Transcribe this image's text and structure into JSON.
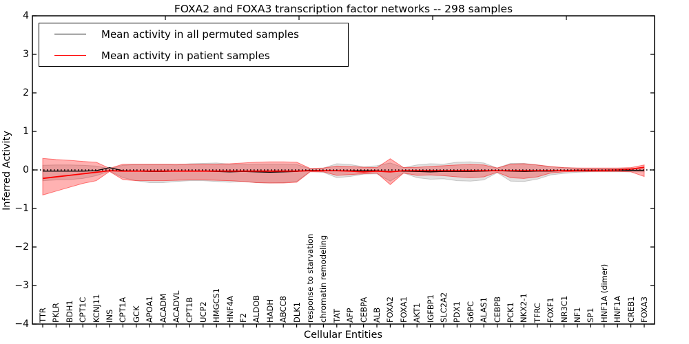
{
  "figure": {
    "title": "FOXA2 and FOXA3 transcription factor networks -- 298 samples",
    "xlabel": "Cellular Entities",
    "ylabel": "Inferred Activity"
  },
  "legend": {
    "items": [
      {
        "label": "Mean activity in all permuted samples",
        "color": "#000000"
      },
      {
        "label": "Mean activity in patient samples",
        "color": "#ff0000"
      }
    ],
    "position": "upper left"
  },
  "colors": {
    "permuted_line": "#000000",
    "patient_line": "#ff0000",
    "permuted_band": "#888888",
    "patient_band": "#ff0000",
    "zero_line": "#000000",
    "axis": "#000000"
  },
  "chart_data": {
    "type": "line",
    "title": "FOXA2 and FOXA3 transcription factor networks -- 298 samples",
    "xlabel": "Cellular Entities",
    "ylabel": "Inferred Activity",
    "ylim": [
      -4,
      4
    ],
    "y_ticks": [
      {
        "value": 4,
        "label": "4"
      },
      {
        "value": 3,
        "label": "3"
      },
      {
        "value": 2,
        "label": "2"
      },
      {
        "value": 1,
        "label": "1"
      },
      {
        "value": 0,
        "label": "0"
      },
      {
        "value": -1,
        "label": "−1"
      },
      {
        "value": -2,
        "label": "−2"
      },
      {
        "value": -3,
        "label": "−3"
      },
      {
        "value": -4,
        "label": "−4"
      }
    ],
    "grid": false,
    "legend_position": "upper left",
    "categories": [
      "TTR",
      "PKLR",
      "BDH1",
      "CPT1C",
      "KCNJ11",
      "INS",
      "CPT1A",
      "GCK",
      "APOA1",
      "ACADM",
      "ACADVL",
      "CPT1B",
      "UCP2",
      "HMGCS1",
      "HNF4A",
      "F2",
      "ALDOB",
      "HADH",
      "ABCC8",
      "DLK1",
      "response to starvation",
      "chromatin remodeling",
      "TAT",
      "AFP",
      "CEBPA",
      "ALB",
      "FOXA2",
      "FOXA1",
      "AKT1",
      "IGFBP1",
      "SLC2A2",
      "PDX1",
      "G6PC",
      "ALAS1",
      "CEBPB",
      "PCK1",
      "NKX2-1",
      "TFRC",
      "FOXF1",
      "NR3C1",
      "NF1",
      "SP1",
      "HNF1A (dimer)",
      "HNF1A",
      "CREB1",
      "FOXA3"
    ],
    "reference_lines": [
      {
        "y": 0,
        "style": "dotted",
        "color": "#000000"
      }
    ],
    "series": [
      {
        "name": "Mean activity in all permuted samples",
        "style": "line",
        "color": "#000000",
        "values": [
          -0.03,
          -0.03,
          -0.03,
          -0.03,
          -0.02,
          0.06,
          -0.02,
          -0.03,
          -0.04,
          -0.04,
          -0.03,
          -0.03,
          -0.03,
          -0.04,
          -0.05,
          -0.04,
          -0.05,
          -0.06,
          -0.05,
          -0.04,
          -0.01,
          -0.02,
          -0.02,
          -0.02,
          -0.02,
          -0.02,
          -0.04,
          -0.03,
          -0.04,
          -0.05,
          -0.04,
          -0.04,
          -0.04,
          -0.03,
          -0.02,
          -0.03,
          -0.04,
          -0.03,
          -0.03,
          -0.02,
          -0.02,
          -0.02,
          -0.01,
          -0.01,
          -0.01,
          -0.01
        ]
      },
      {
        "name": "Mean activity in patient samples",
        "style": "line",
        "color": "#ff0000",
        "values": [
          -0.22,
          -0.18,
          -0.14,
          -0.1,
          -0.06,
          -0.02,
          -0.03,
          -0.03,
          -0.03,
          -0.03,
          -0.03,
          -0.03,
          -0.03,
          -0.03,
          -0.03,
          -0.03,
          -0.03,
          -0.03,
          -0.03,
          -0.03,
          -0.02,
          -0.02,
          -0.02,
          -0.03,
          -0.05,
          -0.03,
          -0.05,
          -0.02,
          -0.02,
          -0.02,
          -0.02,
          -0.02,
          -0.02,
          -0.02,
          -0.02,
          -0.02,
          -0.02,
          -0.02,
          -0.02,
          -0.02,
          -0.01,
          -0.01,
          -0.01,
          0.0,
          0.02,
          0.07
        ]
      },
      {
        "name": "Std band of permuted samples",
        "style": "band",
        "color": "#888888",
        "opacity": 0.25,
        "upper": [
          0.12,
          0.13,
          0.13,
          0.12,
          0.1,
          0.03,
          0.12,
          0.14,
          0.14,
          0.14,
          0.13,
          0.16,
          0.17,
          0.18,
          0.15,
          0.14,
          0.15,
          0.15,
          0.15,
          0.14,
          0.03,
          0.05,
          0.16,
          0.14,
          0.08,
          0.11,
          0.18,
          0.06,
          0.13,
          0.16,
          0.15,
          0.2,
          0.21,
          0.18,
          0.05,
          0.17,
          0.17,
          0.13,
          0.08,
          0.06,
          0.05,
          0.04,
          0.04,
          0.04,
          0.04,
          0.05
        ],
        "lower": [
          -0.28,
          -0.26,
          -0.25,
          -0.22,
          -0.15,
          -0.03,
          -0.2,
          -0.28,
          -0.33,
          -0.33,
          -0.3,
          -0.28,
          -0.28,
          -0.3,
          -0.32,
          -0.3,
          -0.33,
          -0.34,
          -0.33,
          -0.3,
          -0.04,
          -0.06,
          -0.2,
          -0.17,
          -0.11,
          -0.1,
          -0.29,
          -0.08,
          -0.2,
          -0.24,
          -0.23,
          -0.28,
          -0.29,
          -0.26,
          -0.07,
          -0.29,
          -0.3,
          -0.24,
          -0.13,
          -0.09,
          -0.06,
          -0.05,
          -0.05,
          -0.05,
          -0.05,
          -0.05
        ]
      },
      {
        "name": "Std band of patient samples",
        "style": "band",
        "color": "#ff0000",
        "opacity": 0.3,
        "upper": [
          0.3,
          0.27,
          0.25,
          0.22,
          0.2,
          0.04,
          0.15,
          0.15,
          0.15,
          0.15,
          0.15,
          0.15,
          0.15,
          0.15,
          0.16,
          0.18,
          0.2,
          0.21,
          0.21,
          0.2,
          0.04,
          0.05,
          0.1,
          0.09,
          0.07,
          0.06,
          0.29,
          0.06,
          0.07,
          0.09,
          0.11,
          0.13,
          0.14,
          0.13,
          0.05,
          0.15,
          0.16,
          0.13,
          0.09,
          0.06,
          0.05,
          0.05,
          0.05,
          0.05,
          0.06,
          0.13
        ],
        "lower": [
          -0.65,
          -0.55,
          -0.45,
          -0.35,
          -0.28,
          -0.04,
          -0.25,
          -0.28,
          -0.28,
          -0.28,
          -0.27,
          -0.26,
          -0.26,
          -0.27,
          -0.28,
          -0.3,
          -0.33,
          -0.34,
          -0.34,
          -0.32,
          -0.05,
          -0.05,
          -0.14,
          -0.12,
          -0.1,
          -0.08,
          -0.38,
          -0.08,
          -0.14,
          -0.13,
          -0.15,
          -0.18,
          -0.2,
          -0.18,
          -0.06,
          -0.2,
          -0.22,
          -0.18,
          -0.08,
          -0.05,
          -0.04,
          -0.04,
          -0.04,
          -0.04,
          -0.05,
          -0.17
        ]
      }
    ]
  }
}
